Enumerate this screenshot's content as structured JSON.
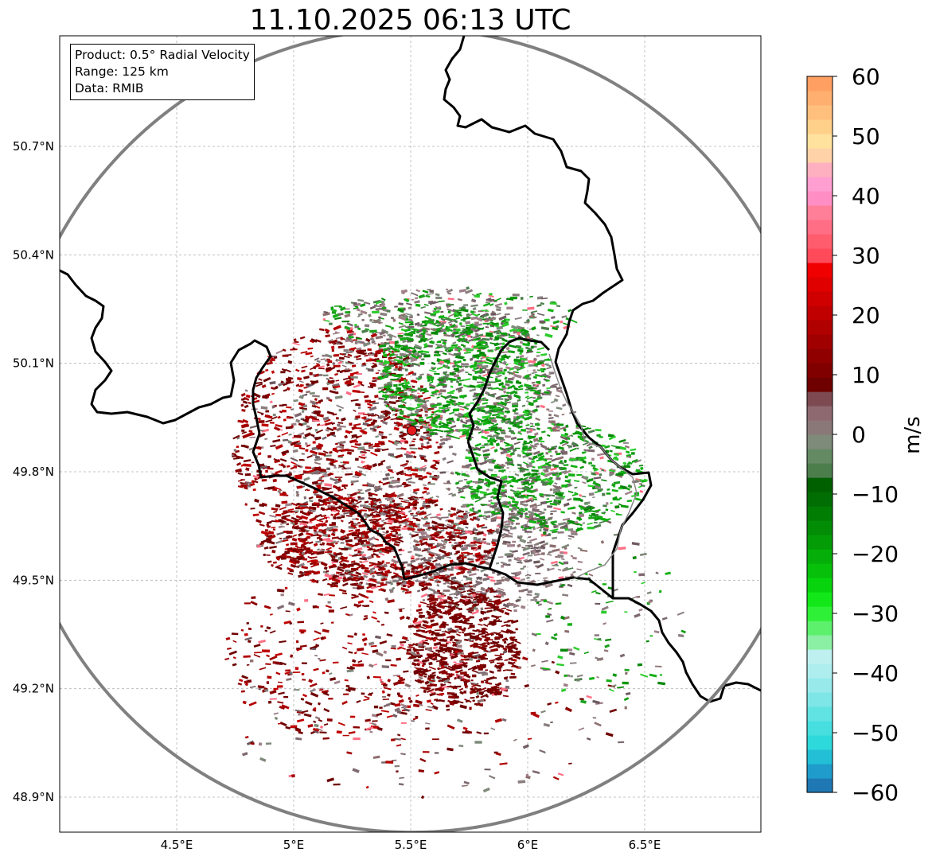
{
  "title": "11.10.2025 06:13 UTC",
  "info": {
    "product": "Product: 0.5° Radial Velocity",
    "range": "Range: 125 km",
    "source": "Data: RMIB"
  },
  "axes": {
    "lon_ticks": [
      "4.5°E",
      "5°E",
      "5.5°E",
      "6°E",
      "6.5°E"
    ],
    "lat_ticks": [
      "50.7°N",
      "50.4°N",
      "50.1°N",
      "49.8°N",
      "49.5°N",
      "49.2°N",
      "48.9°N"
    ]
  },
  "colorbar": {
    "label": "m/s",
    "min": -60,
    "max": 60,
    "ticks": [
      "60",
      "50",
      "40",
      "30",
      "20",
      "10",
      "0",
      "−10",
      "−20",
      "−30",
      "−40",
      "−50",
      "−60"
    ],
    "tick_values": [
      60,
      50,
      40,
      30,
      20,
      10,
      0,
      -10,
      -20,
      -30,
      -40,
      -50,
      -60
    ],
    "colors": [
      "#1f78b4",
      "#1f9ccc",
      "#22bfd6",
      "#2ed9dc",
      "#46dedf",
      "#62e3e3",
      "#7ee6e6",
      "#98eaea",
      "#aeeeee",
      "#bff0f0",
      "#8cf0a4",
      "#5cf06c",
      "#2ef036",
      "#12e818",
      "#08d40e",
      "#06c00a",
      "#05ae08",
      "#049c06",
      "#038c05",
      "#027d04",
      "#016e03",
      "#006000",
      "#4c7e4c",
      "#648a64",
      "#7e8a7a",
      "#8a7878",
      "#8e6a70",
      "#7e4a52",
      "#6e0000",
      "#800000",
      "#900000",
      "#a00000",
      "#b00000",
      "#c00000",
      "#d00000",
      "#e00000",
      "#f00000",
      "#ff4a5a",
      "#ff5c6e",
      "#ff6e84",
      "#ff7e98",
      "#ff8ec4",
      "#ff9ed0",
      "#ffb0c0",
      "#ffd2a8",
      "#ffe29e",
      "#ffd08a",
      "#ffc07e",
      "#ffb070",
      "#ffa062"
    ]
  },
  "colors": {
    "range_ring": "#808080",
    "border": "#000000",
    "inner_border": "#888888",
    "radar_site": "#e31a1c",
    "grid": "#b4b4b4",
    "approaching": "#009a00",
    "receding": "#8b0000",
    "neutral": "#8a7e7e"
  },
  "radar_site": {
    "lon": 5.505,
    "lat": 49.914
  }
}
